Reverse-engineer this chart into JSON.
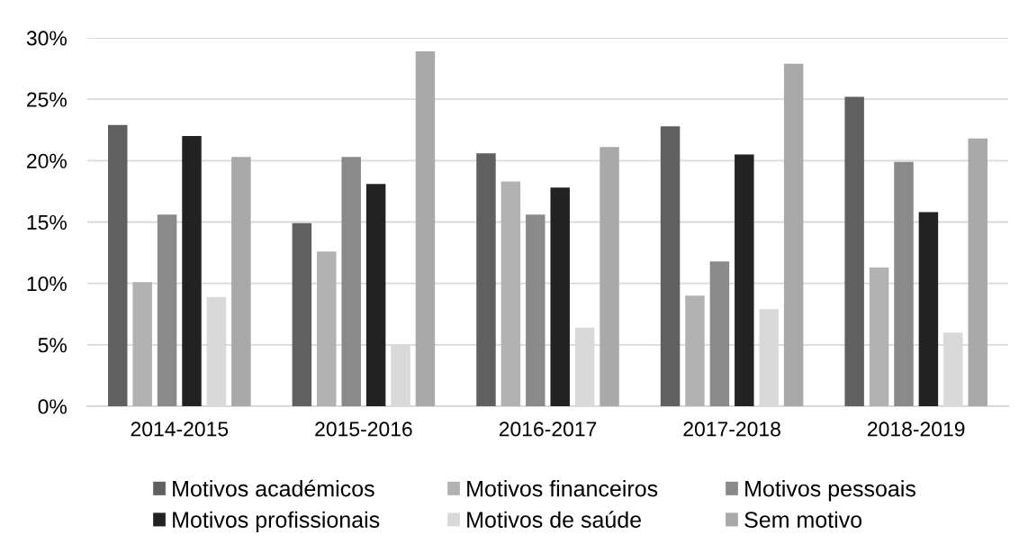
{
  "chart_data": {
    "type": "bar",
    "categories": [
      "2014-2015",
      "2015-2016",
      "2016-2017",
      "2017-2018",
      "2018-2019"
    ],
    "series": [
      {
        "name": "Motivos académicos",
        "color": "#606060",
        "values": [
          22.9,
          14.9,
          20.6,
          22.8,
          25.2
        ]
      },
      {
        "name": "Motivos financeiros",
        "color": "#b2b2b2",
        "values": [
          10.1,
          12.6,
          18.3,
          9.0,
          11.3
        ]
      },
      {
        "name": "Motivos pessoais",
        "color": "#8a8a8a",
        "values": [
          15.6,
          20.3,
          15.6,
          11.8,
          19.9
        ]
      },
      {
        "name": "Motivos profissionais",
        "color": "#222222",
        "values": [
          22.0,
          18.1,
          17.8,
          20.5,
          15.8
        ]
      },
      {
        "name": "Motivos de saúde",
        "color": "#d9d9d9",
        "values": [
          8.9,
          5.0,
          6.4,
          7.9,
          6.0
        ]
      },
      {
        "name": "Sem motivo",
        "color": "#a9a9a9",
        "values": [
          20.3,
          28.9,
          21.1,
          27.9,
          21.8
        ]
      }
    ],
    "ylim": [
      0,
      30
    ],
    "yticks": [
      {
        "value": 0,
        "label": "0%"
      },
      {
        "value": 5,
        "label": "5%"
      },
      {
        "value": 10,
        "label": "10%"
      },
      {
        "value": 15,
        "label": "15%"
      },
      {
        "value": 20,
        "label": "20%"
      },
      {
        "value": 25,
        "label": "25%"
      },
      {
        "value": 30,
        "label": "30%"
      }
    ],
    "grid": "y",
    "legend": "bottom"
  }
}
